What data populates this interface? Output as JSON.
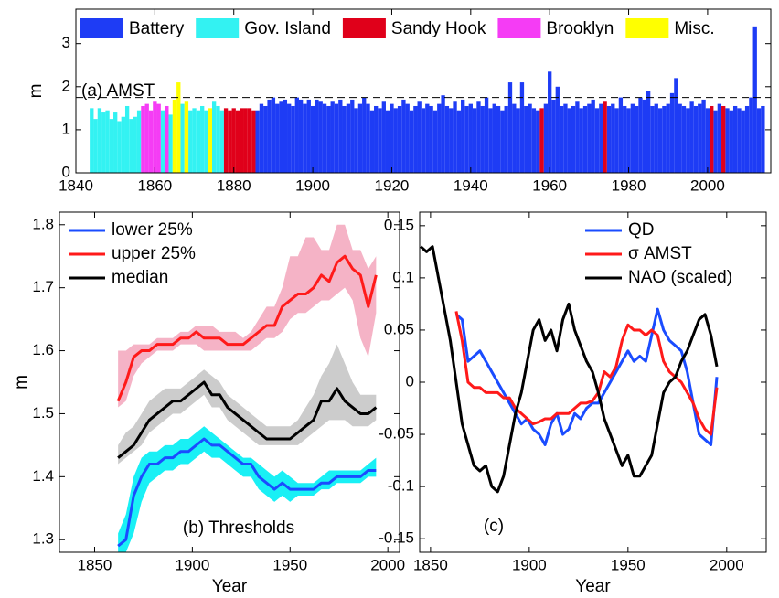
{
  "chart_data": [
    {
      "type": "bar",
      "ylabel": "m",
      "annotation": "(a) AMST",
      "legend": "top",
      "xlim": [
        1840,
        2016
      ],
      "xticks": [
        1840,
        1860,
        1880,
        1900,
        1920,
        1940,
        1960,
        1980,
        2000
      ],
      "ylim": [
        0,
        3.8
      ],
      "yticks": [
        0,
        1,
        2,
        3
      ],
      "reference_line": 1.75,
      "series": [
        {
          "name": "Battery",
          "color": "#1e3cf5",
          "x": [
            1886,
            1887,
            1888,
            1889,
            1890,
            1891,
            1892,
            1893,
            1894,
            1895,
            1896,
            1897,
            1898,
            1899,
            1900,
            1901,
            1902,
            1903,
            1904,
            1905,
            1906,
            1907,
            1908,
            1909,
            1910,
            1911,
            1912,
            1913,
            1914,
            1915,
            1916,
            1917,
            1918,
            1919,
            1920,
            1921,
            1922,
            1923,
            1924,
            1925,
            1926,
            1927,
            1928,
            1929,
            1930,
            1931,
            1932,
            1933,
            1934,
            1935,
            1936,
            1937,
            1938,
            1939,
            1940,
            1941,
            1942,
            1943,
            1944,
            1945,
            1946,
            1947,
            1948,
            1949,
            1950,
            1951,
            1952,
            1953,
            1954,
            1955,
            1956,
            1957,
            1959,
            1960,
            1961,
            1962,
            1963,
            1964,
            1965,
            1966,
            1967,
            1968,
            1969,
            1970,
            1971,
            1972,
            1973,
            1975,
            1976,
            1977,
            1978,
            1979,
            1980,
            1981,
            1982,
            1983,
            1984,
            1985,
            1986,
            1987,
            1988,
            1989,
            1990,
            1991,
            1992,
            1993,
            1994,
            1995,
            1996,
            1997,
            1998,
            1999,
            2000,
            2002,
            2003,
            2005,
            2006,
            2007,
            2008,
            2009,
            2010,
            2011,
            2012,
            2013,
            2014
          ],
          "values": [
            1.45,
            1.6,
            1.55,
            1.7,
            1.75,
            1.6,
            1.65,
            1.7,
            1.6,
            1.55,
            1.75,
            1.7,
            1.6,
            1.7,
            1.55,
            1.7,
            1.65,
            1.6,
            1.55,
            1.65,
            1.6,
            1.7,
            1.55,
            1.6,
            1.7,
            1.5,
            1.6,
            1.75,
            1.6,
            1.45,
            1.55,
            1.5,
            1.65,
            1.45,
            1.6,
            1.5,
            1.55,
            1.7,
            1.6,
            1.45,
            1.55,
            1.65,
            1.5,
            1.6,
            1.55,
            1.45,
            1.6,
            1.8,
            1.55,
            1.5,
            1.65,
            1.45,
            1.7,
            1.55,
            1.6,
            1.5,
            1.65,
            1.55,
            1.75,
            1.5,
            1.6,
            1.55,
            1.45,
            1.55,
            2.1,
            1.6,
            1.5,
            2.1,
            1.55,
            1.6,
            1.5,
            1.45,
            1.6,
            2.35,
            1.7,
            2.0,
            1.55,
            1.6,
            1.5,
            1.55,
            1.65,
            1.5,
            1.55,
            1.6,
            1.7,
            1.5,
            1.6,
            1.55,
            1.6,
            1.5,
            1.75,
            1.55,
            1.5,
            1.6,
            1.55,
            1.75,
            1.7,
            1.9,
            1.55,
            1.6,
            1.5,
            1.55,
            1.6,
            1.85,
            2.2,
            1.6,
            1.55,
            1.5,
            1.65,
            1.55,
            1.6,
            1.7,
            1.5,
            1.45,
            1.6,
            1.5,
            1.45,
            1.55,
            1.5,
            1.45,
            1.55,
            1.75,
            3.4,
            1.5,
            1.55
          ]
        },
        {
          "name": "Gov. Island",
          "color": "#33f2f2",
          "x": [
            1844,
            1845,
            1846,
            1847,
            1848,
            1849,
            1850,
            1851,
            1852,
            1853,
            1854,
            1855,
            1856,
            1862,
            1864,
            1867,
            1869,
            1870,
            1871,
            1872,
            1873,
            1875,
            1876,
            1877
          ],
          "values": [
            1.5,
            1.25,
            1.5,
            1.4,
            1.45,
            1.25,
            1.4,
            1.2,
            1.3,
            1.55,
            1.25,
            1.3,
            1.45,
            1.45,
            1.35,
            1.6,
            1.45,
            1.5,
            1.45,
            1.55,
            1.45,
            1.65,
            1.55,
            1.45
          ]
        },
        {
          "name": "Sandy Hook",
          "color": "#e0001a",
          "x": [
            1878,
            1879,
            1880,
            1881,
            1882,
            1883,
            1884,
            1885,
            1958,
            1974,
            2001,
            2004
          ],
          "values": [
            1.5,
            1.45,
            1.5,
            1.45,
            1.5,
            1.5,
            1.5,
            1.45,
            1.5,
            1.65,
            1.55,
            1.55
          ]
        },
        {
          "name": "Brooklyn",
          "color": "#f53cf5",
          "x": [
            1857,
            1858,
            1859,
            1860,
            1861,
            1863
          ],
          "values": [
            1.55,
            1.6,
            1.45,
            1.65,
            1.6,
            1.55
          ]
        },
        {
          "name": "Misc.",
          "color": "#ffff00",
          "x": [
            1865,
            1866,
            1868,
            1874
          ],
          "values": [
            1.7,
            2.1,
            1.65,
            1.5
          ]
        }
      ]
    },
    {
      "type": "band-line",
      "ylabel": "m",
      "xlabel": "Year",
      "annotation": "(b) Thresholds",
      "legend": "upper left",
      "xlim": [
        1832,
        2006
      ],
      "xticks": [
        1850,
        1900,
        1950,
        2000
      ],
      "ylim": [
        1.28,
        1.82
      ],
      "yticks": [
        1.3,
        1.4,
        1.5,
        1.6,
        1.7,
        1.8
      ],
      "x": [
        1862,
        1866,
        1870,
        1874,
        1878,
        1882,
        1886,
        1890,
        1894,
        1898,
        1902,
        1906,
        1910,
        1914,
        1918,
        1922,
        1926,
        1930,
        1934,
        1938,
        1942,
        1946,
        1950,
        1954,
        1958,
        1962,
        1966,
        1970,
        1974,
        1978,
        1982,
        1986,
        1990,
        1994
      ],
      "series": [
        {
          "name": "lower 25%",
          "color": "#1a4cff",
          "band_color": "#19f0f5",
          "values": [
            1.29,
            1.3,
            1.37,
            1.4,
            1.42,
            1.42,
            1.43,
            1.43,
            1.44,
            1.44,
            1.45,
            1.46,
            1.45,
            1.45,
            1.44,
            1.43,
            1.42,
            1.42,
            1.4,
            1.39,
            1.38,
            1.39,
            1.38,
            1.38,
            1.38,
            1.38,
            1.39,
            1.39,
            1.4,
            1.4,
            1.4,
            1.4,
            1.41,
            1.41
          ],
          "band_low": [
            1.28,
            1.28,
            1.31,
            1.36,
            1.39,
            1.4,
            1.41,
            1.41,
            1.42,
            1.42,
            1.43,
            1.44,
            1.43,
            1.43,
            1.42,
            1.41,
            1.4,
            1.4,
            1.38,
            1.37,
            1.36,
            1.37,
            1.36,
            1.37,
            1.37,
            1.37,
            1.38,
            1.38,
            1.39,
            1.39,
            1.39,
            1.39,
            1.4,
            1.4
          ],
          "band_high": [
            1.31,
            1.34,
            1.4,
            1.43,
            1.44,
            1.44,
            1.45,
            1.45,
            1.46,
            1.46,
            1.47,
            1.48,
            1.47,
            1.46,
            1.45,
            1.44,
            1.43,
            1.43,
            1.42,
            1.41,
            1.4,
            1.41,
            1.4,
            1.39,
            1.39,
            1.39,
            1.4,
            1.41,
            1.41,
            1.41,
            1.41,
            1.41,
            1.42,
            1.43
          ]
        },
        {
          "name": "upper 25%",
          "color": "#ff1a1a",
          "band_color": "#f5b3c6",
          "values": [
            1.52,
            1.55,
            1.59,
            1.6,
            1.6,
            1.61,
            1.61,
            1.61,
            1.62,
            1.62,
            1.63,
            1.62,
            1.62,
            1.62,
            1.61,
            1.61,
            1.61,
            1.62,
            1.63,
            1.64,
            1.64,
            1.67,
            1.68,
            1.69,
            1.69,
            1.7,
            1.72,
            1.71,
            1.74,
            1.75,
            1.73,
            1.72,
            1.67,
            1.72
          ],
          "band_low": [
            1.51,
            1.52,
            1.56,
            1.58,
            1.59,
            1.6,
            1.6,
            1.6,
            1.61,
            1.61,
            1.61,
            1.6,
            1.6,
            1.6,
            1.6,
            1.6,
            1.6,
            1.6,
            1.61,
            1.62,
            1.62,
            1.63,
            1.65,
            1.66,
            1.66,
            1.67,
            1.68,
            1.68,
            1.69,
            1.7,
            1.68,
            1.62,
            1.59,
            1.66
          ],
          "band_high": [
            1.6,
            1.6,
            1.61,
            1.61,
            1.61,
            1.62,
            1.62,
            1.62,
            1.63,
            1.63,
            1.64,
            1.64,
            1.64,
            1.63,
            1.63,
            1.63,
            1.62,
            1.63,
            1.65,
            1.67,
            1.67,
            1.7,
            1.75,
            1.75,
            1.78,
            1.78,
            1.76,
            1.76,
            1.8,
            1.8,
            1.76,
            1.76,
            1.73,
            1.75
          ]
        },
        {
          "name": "median",
          "color": "#000000",
          "band_color": "#cccccc",
          "values": [
            1.43,
            1.44,
            1.45,
            1.47,
            1.49,
            1.5,
            1.51,
            1.52,
            1.52,
            1.53,
            1.54,
            1.55,
            1.53,
            1.53,
            1.51,
            1.5,
            1.49,
            1.48,
            1.47,
            1.46,
            1.46,
            1.46,
            1.46,
            1.47,
            1.48,
            1.49,
            1.52,
            1.52,
            1.54,
            1.52,
            1.51,
            1.5,
            1.5,
            1.51
          ],
          "band_low": [
            1.42,
            1.43,
            1.44,
            1.45,
            1.47,
            1.48,
            1.49,
            1.5,
            1.5,
            1.51,
            1.52,
            1.53,
            1.51,
            1.51,
            1.49,
            1.48,
            1.47,
            1.46,
            1.45,
            1.45,
            1.45,
            1.45,
            1.45,
            1.45,
            1.46,
            1.47,
            1.48,
            1.49,
            1.49,
            1.49,
            1.48,
            1.48,
            1.48,
            1.49
          ],
          "band_high": [
            1.45,
            1.47,
            1.48,
            1.5,
            1.52,
            1.53,
            1.54,
            1.54,
            1.54,
            1.55,
            1.56,
            1.57,
            1.56,
            1.55,
            1.53,
            1.52,
            1.51,
            1.5,
            1.49,
            1.48,
            1.48,
            1.48,
            1.48,
            1.49,
            1.51,
            1.53,
            1.56,
            1.58,
            1.61,
            1.58,
            1.55,
            1.53,
            1.53,
            1.53
          ]
        }
      ]
    },
    {
      "type": "line",
      "xlabel": "Year",
      "annotation": "(c)",
      "legend": "upper right",
      "xlim": [
        1844.5,
        2020
      ],
      "xticks": [
        1850,
        1900,
        1950,
        2000
      ],
      "ylim": [
        -0.163,
        0.163
      ],
      "yticks": [
        -0.15,
        -0.1,
        -0.05,
        0,
        0.05,
        0.1,
        0.15
      ],
      "x": [
        1845,
        1848,
        1851,
        1854,
        1857,
        1860,
        1863,
        1866,
        1869,
        1872,
        1875,
        1878,
        1881,
        1884,
        1887,
        1890,
        1893,
        1896,
        1899,
        1902,
        1905,
        1908,
        1911,
        1914,
        1917,
        1920,
        1923,
        1926,
        1929,
        1932,
        1935,
        1938,
        1941,
        1944,
        1947,
        1950,
        1953,
        1956,
        1959,
        1962,
        1965,
        1968,
        1971,
        1974,
        1977,
        1980,
        1983,
        1986,
        1989,
        1992,
        1995
      ],
      "series": [
        {
          "name": "QD",
          "color": "#1a4cff",
          "values": [
            null,
            null,
            null,
            null,
            null,
            null,
            0.065,
            0.06,
            0.02,
            0.025,
            0.03,
            0.02,
            0.01,
            0.0,
            -0.01,
            -0.02,
            -0.03,
            -0.04,
            -0.035,
            -0.045,
            -0.05,
            -0.06,
            -0.04,
            -0.03,
            -0.05,
            -0.045,
            -0.03,
            -0.035,
            -0.025,
            -0.02,
            -0.02,
            -0.01,
            0.0,
            0.01,
            0.02,
            0.03,
            0.02,
            0.025,
            0.02,
            0.045,
            0.07,
            0.05,
            0.04,
            0.035,
            0.03,
            0.01,
            -0.02,
            -0.05,
            -0.055,
            -0.06,
            0.005
          ]
        },
        {
          "name": "σ AMST",
          "color": "#ff1a1a",
          "values": [
            null,
            null,
            null,
            null,
            null,
            null,
            0.068,
            0.04,
            0.0,
            -0.005,
            -0.005,
            -0.01,
            -0.01,
            -0.01,
            -0.015,
            -0.015,
            -0.025,
            -0.03,
            -0.035,
            -0.04,
            -0.038,
            -0.035,
            -0.035,
            -0.03,
            -0.03,
            -0.03,
            -0.025,
            -0.02,
            -0.02,
            -0.018,
            -0.01,
            0.01,
            0.005,
            0.015,
            0.04,
            0.055,
            0.05,
            0.05,
            0.045,
            0.05,
            0.045,
            0.02,
            0.01,
            0.005,
            0.0,
            -0.01,
            -0.02,
            -0.035,
            -0.045,
            -0.05,
            -0.005
          ]
        },
        {
          "name": "NAO (scaled)",
          "color": "#000000",
          "values": [
            0.13,
            0.125,
            0.13,
            0.1,
            0.07,
            0.04,
            0.0,
            -0.04,
            -0.06,
            -0.08,
            -0.085,
            -0.08,
            -0.1,
            -0.105,
            -0.09,
            -0.06,
            -0.03,
            -0.01,
            0.02,
            0.05,
            0.06,
            0.04,
            0.05,
            0.03,
            0.06,
            0.075,
            0.05,
            0.035,
            0.02,
            0.01,
            -0.01,
            -0.035,
            -0.05,
            -0.065,
            -0.08,
            -0.07,
            -0.09,
            -0.09,
            -0.08,
            -0.07,
            -0.04,
            -0.01,
            0.0,
            0.005,
            0.02,
            0.03,
            0.045,
            0.06,
            0.065,
            0.045,
            0.015
          ]
        }
      ]
    }
  ]
}
